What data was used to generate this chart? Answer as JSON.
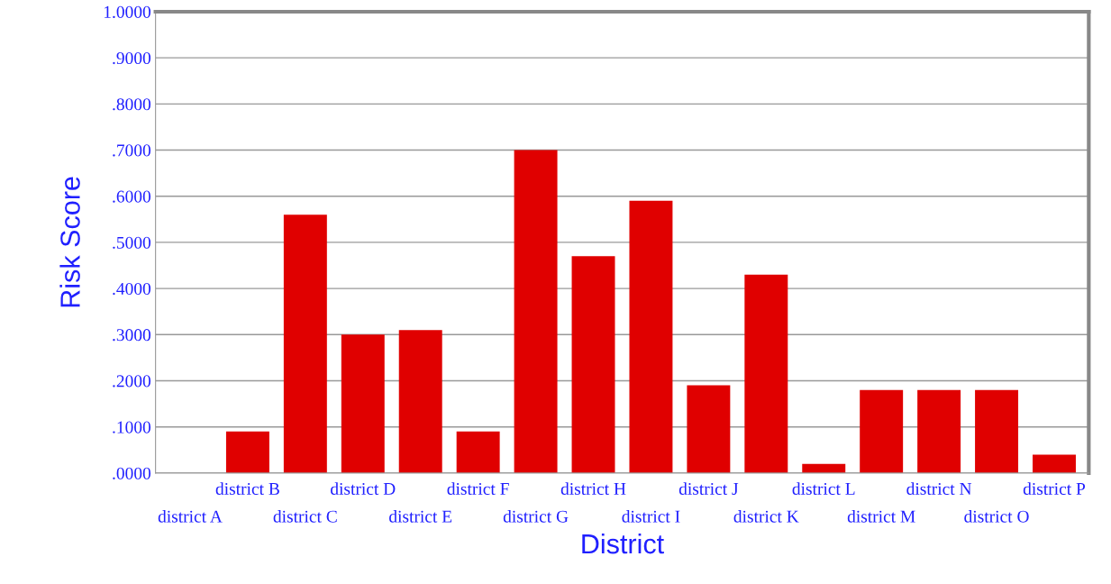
{
  "chart_data": {
    "type": "bar",
    "xlabel": "District",
    "ylabel": "Risk Score",
    "categories": [
      "district A",
      "district B",
      "district C",
      "district D",
      "district E",
      "district F",
      "district G",
      "district H",
      "district I",
      "district J",
      "district K",
      "district L",
      "district M",
      "district N",
      "district O",
      "district P"
    ],
    "values": [
      0,
      0.09,
      0.56,
      0.3,
      0.31,
      0.09,
      0.7,
      0.47,
      0.59,
      0.19,
      0.43,
      0.02,
      0.18,
      0.18,
      0.18,
      0.04
    ],
    "color": "#e00000",
    "ylim": [
      0,
      1
    ],
    "yticks": [
      {
        "value": 0,
        "label": ".0000"
      },
      {
        "value": 0.1,
        "label": ".1000"
      },
      {
        "value": 0.2,
        "label": ".2000"
      },
      {
        "value": 0.3,
        "label": ".3000"
      },
      {
        "value": 0.4,
        "label": ".4000"
      },
      {
        "value": 0.5,
        "label": ".5000"
      },
      {
        "value": 0.6,
        "label": ".6000"
      },
      {
        "value": 0.7,
        "label": ".7000"
      },
      {
        "value": 0.8,
        "label": ".8000"
      },
      {
        "value": 0.9,
        "label": ".9000"
      },
      {
        "value": 1,
        "label": "1.0000"
      }
    ],
    "grid": "y"
  }
}
